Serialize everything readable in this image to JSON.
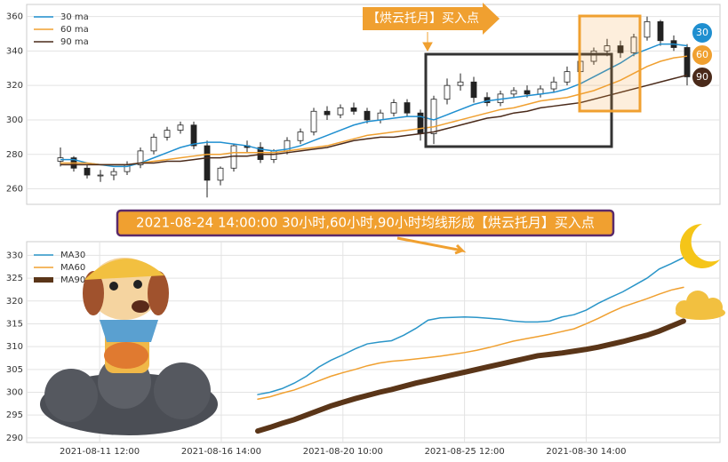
{
  "chart_data": [
    {
      "type": "candlestick",
      "annotation": "【烘云托月】买入点",
      "badges": [
        "30",
        "60",
        "90"
      ],
      "ylim": [
        251,
        367
      ],
      "yticks": [
        260,
        280,
        300,
        320,
        340,
        360
      ],
      "grid": true,
      "legend": "upper left",
      "candle_up_color": "#ffffff",
      "candle_down_color": "#222222",
      "open": [
        276,
        278,
        272,
        268,
        268,
        270,
        274,
        282,
        290,
        294,
        297,
        285,
        265,
        272,
        285,
        284,
        277,
        282,
        288,
        293,
        305,
        303,
        307,
        305,
        300,
        304,
        310,
        304,
        292,
        312,
        320,
        322,
        313,
        310,
        315,
        317,
        315,
        318,
        322,
        328,
        334,
        340,
        343,
        339,
        348,
        357,
        346,
        342
      ],
      "high": [
        284,
        279,
        274,
        271,
        272,
        276,
        284,
        292,
        296,
        299,
        299,
        288,
        273,
        286,
        288,
        287,
        283,
        290,
        295,
        307,
        308,
        309,
        310,
        307,
        306,
        312,
        312,
        306,
        314,
        324,
        327,
        325,
        316,
        317,
        319,
        320,
        320,
        325,
        331,
        337,
        342,
        347,
        346,
        350,
        360,
        358,
        349,
        344
      ],
      "low": [
        273,
        270,
        266,
        264,
        265,
        268,
        272,
        280,
        288,
        292,
        283,
        255,
        262,
        270,
        281,
        275,
        275,
        280,
        286,
        291,
        300,
        301,
        303,
        298,
        298,
        302,
        302,
        288,
        286,
        309,
        317,
        310,
        308,
        308,
        313,
        313,
        313,
        316,
        320,
        326,
        332,
        337,
        336,
        337,
        346,
        343,
        340,
        320
      ],
      "close": [
        278,
        272,
        268,
        268,
        270,
        274,
        282,
        290,
        294,
        297,
        285,
        265,
        272,
        285,
        284,
        277,
        282,
        288,
        293,
        305,
        303,
        307,
        305,
        300,
        304,
        310,
        304,
        292,
        312,
        320,
        322,
        313,
        310,
        315,
        317,
        315,
        318,
        322,
        328,
        334,
        340,
        343,
        339,
        348,
        357,
        346,
        342,
        325
      ],
      "series": [
        {
          "name": "30 ma",
          "color": "#1f8fd0",
          "values": [
            277,
            277,
            275,
            274,
            273,
            273,
            275,
            278,
            281,
            284,
            286,
            287,
            287,
            286,
            285,
            283,
            282,
            283,
            285,
            288,
            291,
            294,
            297,
            299,
            300,
            301,
            302,
            302,
            300,
            303,
            306,
            309,
            311,
            312,
            313,
            314,
            315,
            316,
            318,
            321,
            325,
            329,
            333,
            338,
            341,
            344,
            344,
            343
          ]
        },
        {
          "name": "60 ma",
          "color": "#f0a030",
          "values": [
            275,
            275,
            275,
            274,
            274,
            274,
            275,
            276,
            277,
            278,
            279,
            280,
            280,
            281,
            281,
            281,
            281,
            282,
            283,
            284,
            285,
            287,
            289,
            291,
            292,
            293,
            294,
            295,
            296,
            298,
            300,
            302,
            304,
            306,
            307,
            309,
            311,
            312,
            313,
            315,
            317,
            320,
            323,
            327,
            331,
            334,
            336,
            337
          ]
        },
        {
          "name": "90 ma",
          "color": "#4a2a1a",
          "values": [
            274,
            274,
            274,
            274,
            274,
            274,
            275,
            275,
            276,
            276,
            277,
            278,
            278,
            279,
            279,
            280,
            280,
            281,
            282,
            283,
            284,
            286,
            288,
            289,
            290,
            290,
            291,
            292,
            293,
            295,
            297,
            299,
            301,
            302,
            304,
            305,
            307,
            308,
            309,
            310,
            312,
            314,
            316,
            318,
            320,
            322,
            324,
            326
          ]
        }
      ]
    },
    {
      "type": "line",
      "title": "2021-08-24 14:00:00 30小时,60小时,90小时均线形成【烘云托月】买入点",
      "xlim": [
        -0.6,
        5.1
      ],
      "xticks": [
        {
          "value": 0,
          "label": "2021-08-11 12:00"
        },
        {
          "value": 1,
          "label": "2021-08-16 14:00"
        },
        {
          "value": 2,
          "label": "2021-08-20 10:00"
        },
        {
          "value": 3,
          "label": "2021-08-25 12:00"
        },
        {
          "value": 4,
          "label": "2021-08-30 14:00"
        }
      ],
      "ylim": [
        289,
        333
      ],
      "yticks": [
        290,
        295,
        300,
        305,
        310,
        315,
        320,
        325,
        330
      ],
      "grid": true,
      "legend": "upper left",
      "x": [
        1.3,
        1.4,
        1.5,
        1.6,
        1.7,
        1.8,
        1.9,
        2.0,
        2.1,
        2.2,
        2.3,
        2.4,
        2.5,
        2.6,
        2.7,
        2.8,
        2.9,
        3.0,
        3.1,
        3.2,
        3.3,
        3.4,
        3.5,
        3.6,
        3.7,
        3.8,
        3.9,
        4.0,
        4.1,
        4.2,
        4.3,
        4.4,
        4.5,
        4.6,
        4.7,
        4.8
      ],
      "series": [
        {
          "name": "MA30",
          "color": "#2a95c8",
          "width": 1.5,
          "values": [
            299.5,
            300,
            300.8,
            302,
            303.5,
            305.5,
            307,
            308.2,
            309.5,
            310.6,
            311,
            311.3,
            312.5,
            314,
            315.8,
            316.3,
            316.4,
            316.5,
            316.4,
            316.2,
            316,
            315.6,
            315.4,
            315.4,
            315.6,
            316.5,
            317,
            318,
            319.5,
            320.8,
            322,
            323.5,
            325,
            327,
            328.2,
            329.5
          ]
        },
        {
          "name": "MA60",
          "color": "#f0a030",
          "width": 1.5,
          "values": [
            298.5,
            299,
            299.8,
            300.5,
            301.5,
            302.5,
            303.5,
            304.3,
            305,
            305.8,
            306.4,
            306.8,
            307,
            307.3,
            307.6,
            307.9,
            308.3,
            308.7,
            309.2,
            309.8,
            310.5,
            311.2,
            311.7,
            312.2,
            312.7,
            313.3,
            313.9,
            315,
            316.2,
            317.5,
            318.7,
            319.6,
            320.5,
            321.5,
            322.4,
            323
          ]
        },
        {
          "name": "MA90",
          "color": "#5a3518",
          "width": 6,
          "values": [
            291.5,
            292.3,
            293.2,
            294,
            295,
            296,
            297,
            297.8,
            298.6,
            299.3,
            300,
            300.6,
            301.3,
            302,
            302.6,
            303.2,
            303.8,
            304.4,
            305,
            305.6,
            306.2,
            306.8,
            307.4,
            308,
            308.3,
            308.6,
            309,
            309.4,
            309.9,
            310.5,
            311.1,
            311.8,
            312.5,
            313.4,
            314.5,
            315.6
          ]
        }
      ]
    }
  ]
}
